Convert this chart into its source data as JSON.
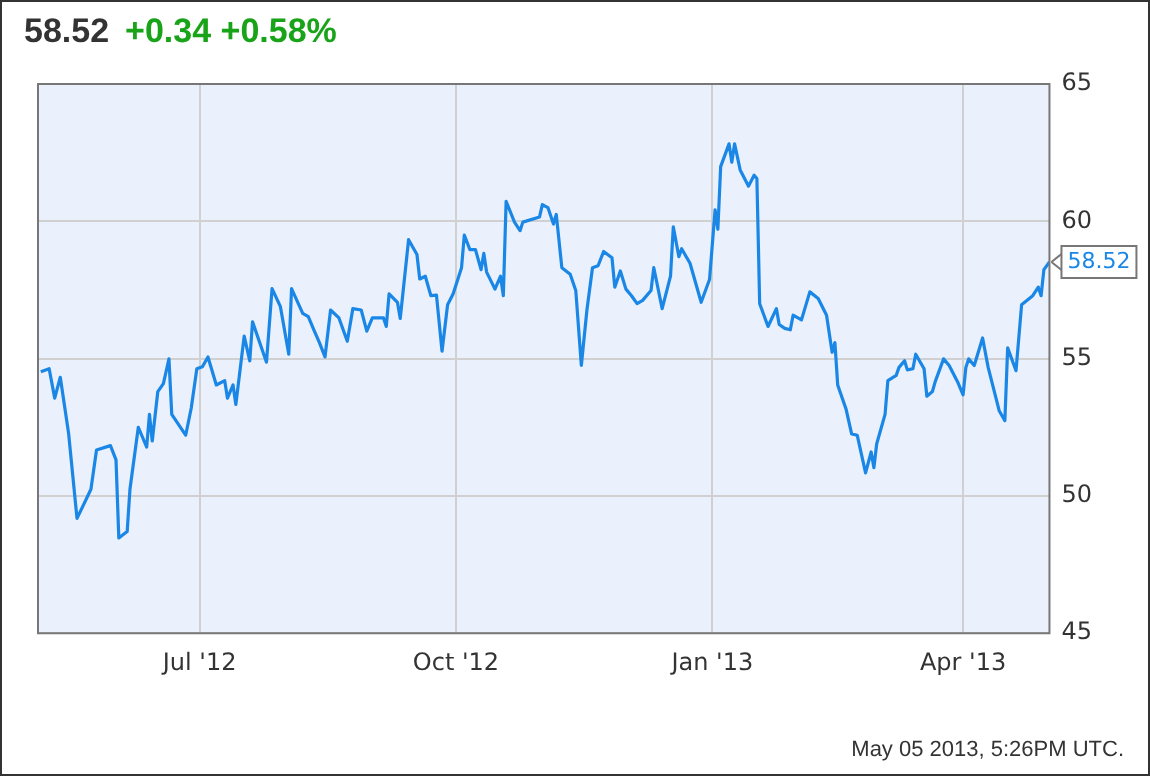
{
  "chart_data": {
    "type": "line",
    "title": "58.52",
    "subtitle": "+0.34  +0.58%",
    "x": [
      "2012-05-05",
      "2012-05-08",
      "2012-05-10",
      "2012-05-12",
      "2012-05-15",
      "2012-05-18",
      "2012-05-23",
      "2012-05-25",
      "2012-05-30",
      "2012-06-01",
      "2012-06-02",
      "2012-06-05",
      "2012-06-06",
      "2012-06-09",
      "2012-06-12",
      "2012-06-13",
      "2012-06-14",
      "2012-06-16",
      "2012-06-18",
      "2012-06-20",
      "2012-06-21",
      "2012-06-26",
      "2012-06-28",
      "2012-06-30",
      "2012-07-02",
      "2012-07-04",
      "2012-07-07",
      "2012-07-10",
      "2012-07-11",
      "2012-07-13",
      "2012-07-14",
      "2012-07-17",
      "2012-07-19",
      "2012-07-20",
      "2012-07-25",
      "2012-07-27",
      "2012-07-30",
      "2012-08-02",
      "2012-08-03",
      "2012-08-07",
      "2012-08-09",
      "2012-08-11",
      "2012-08-13",
      "2012-08-15",
      "2012-08-17",
      "2012-08-20",
      "2012-08-23",
      "2012-08-25",
      "2012-08-28",
      "2012-08-30",
      "2012-09-01",
      "2012-09-05",
      "2012-09-06",
      "2012-09-07",
      "2012-09-10",
      "2012-09-11",
      "2012-09-14",
      "2012-09-17",
      "2012-09-18",
      "2012-09-20",
      "2012-09-22",
      "2012-09-24",
      "2012-09-26",
      "2012-09-28",
      "2012-09-30",
      "2012-10-03",
      "2012-10-04",
      "2012-10-06",
      "2012-10-08",
      "2012-10-10",
      "2012-10-11",
      "2012-10-12",
      "2012-10-15",
      "2012-10-17",
      "2012-10-18",
      "2012-10-19",
      "2012-10-22",
      "2012-10-24",
      "2012-10-25",
      "2012-10-31",
      "2012-11-01",
      "2012-11-03",
      "2012-11-05",
      "2012-11-06",
      "2012-11-08",
      "2012-11-11",
      "2012-11-13",
      "2012-11-15",
      "2012-11-17",
      "2012-11-19",
      "2012-11-21",
      "2012-11-23",
      "2012-11-26",
      "2012-11-27",
      "2012-11-29",
      "2012-12-01",
      "2012-12-03",
      "2012-12-05",
      "2012-12-07",
      "2012-12-10",
      "2012-12-11",
      "2012-12-14",
      "2012-12-17",
      "2012-12-18",
      "2012-12-20",
      "2012-12-21",
      "2012-12-24",
      "2012-12-28",
      "2012-12-31",
      "2013-01-02",
      "2013-01-03",
      "2013-01-04",
      "2013-01-07",
      "2013-01-08",
      "2013-01-09",
      "2013-01-11",
      "2013-01-14",
      "2013-01-16",
      "2013-01-17",
      "2013-01-18",
      "2013-01-21",
      "2013-01-24",
      "2013-01-25",
      "2013-01-27",
      "2013-01-29",
      "2013-01-30",
      "2013-02-02",
      "2013-02-05",
      "2013-02-08",
      "2013-02-11",
      "2013-02-13",
      "2013-02-14",
      "2013-02-15",
      "2013-02-18",
      "2013-02-20",
      "2013-02-22",
      "2013-02-25",
      "2013-02-27",
      "2013-02-28",
      "2013-03-01",
      "2013-03-04",
      "2013-03-05",
      "2013-03-08",
      "2013-03-09",
      "2013-03-11",
      "2013-03-12",
      "2013-03-14",
      "2013-03-15",
      "2013-03-18",
      "2013-03-19",
      "2013-03-21",
      "2013-03-22",
      "2013-03-25",
      "2013-03-27",
      "2013-03-30",
      "2013-04-01",
      "2013-04-02",
      "2013-04-03",
      "2013-04-05",
      "2013-04-08",
      "2013-04-10",
      "2013-04-14",
      "2013-04-16",
      "2013-04-17",
      "2013-04-20",
      "2013-04-22",
      "2013-04-26",
      "2013-04-28",
      "2013-04-29",
      "2013-04-30",
      "2013-05-02"
    ],
    "series": [
      {
        "color": "#1a87e6",
        "values": [
          54.52,
          54.63,
          53.56,
          54.32,
          52.26,
          49.18,
          50.24,
          51.67,
          51.83,
          51.31,
          48.47,
          48.7,
          50.24,
          52.5,
          51.78,
          52.97,
          52.0,
          53.8,
          54.09,
          54.99,
          52.97,
          52.21,
          53.2,
          54.63,
          54.7,
          55.06,
          54.04,
          54.2,
          53.56,
          54.04,
          53.33,
          55.82,
          54.92,
          56.34,
          54.87,
          57.55,
          56.89,
          55.16,
          57.55,
          56.65,
          56.53,
          56.05,
          55.58,
          55.06,
          56.77,
          56.48,
          55.63,
          56.82,
          56.77,
          56.0,
          56.48,
          56.48,
          56.17,
          57.36,
          57.05,
          56.46,
          59.33,
          58.79,
          57.9,
          58.0,
          57.29,
          57.31,
          55.27,
          56.96,
          57.36,
          58.31,
          59.5,
          58.97,
          58.97,
          58.24,
          58.83,
          58.15,
          57.53,
          58.0,
          57.29,
          60.73,
          59.97,
          59.66,
          59.97,
          60.16,
          60.61,
          60.5,
          59.9,
          60.25,
          58.31,
          58.07,
          57.48,
          54.75,
          56.77,
          58.31,
          58.38,
          58.9,
          58.67,
          57.6,
          58.19,
          57.53,
          57.29,
          57.0,
          57.12,
          57.48,
          58.31,
          56.82,
          58.0,
          59.8,
          58.71,
          59.0,
          58.47,
          57.05,
          57.88,
          60.42,
          59.71,
          61.99,
          62.82,
          62.15,
          62.82,
          61.87,
          61.28,
          61.68,
          61.56,
          57.0,
          56.17,
          56.82,
          56.24,
          56.1,
          56.05,
          56.58,
          56.41,
          57.43,
          57.19,
          56.58,
          55.23,
          55.58,
          54.04,
          53.16,
          52.26,
          52.21,
          50.84,
          51.6,
          51.03,
          51.9,
          52.97,
          54.2,
          54.39,
          54.68,
          54.92,
          54.59,
          54.63,
          55.16,
          54.63,
          53.63,
          53.8,
          54.16,
          54.99,
          54.75,
          54.16,
          53.68,
          54.68,
          54.99,
          54.75,
          55.75,
          54.68,
          53.09,
          52.74,
          55.39,
          54.56,
          56.96,
          57.29,
          57.6,
          57.29,
          58.24,
          58.52
        ]
      }
    ],
    "xlim": [
      "2012-05-04",
      "2013-05-02"
    ],
    "xticks": [
      {
        "value": "2012-07-01",
        "label": "Jul '12"
      },
      {
        "value": "2012-10-01",
        "label": "Oct '12"
      },
      {
        "value": "2013-01-01",
        "label": "Jan '13"
      },
      {
        "value": "2013-04-01",
        "label": "Apr '13"
      }
    ],
    "ylim": [
      45,
      65
    ],
    "yticks": [
      45,
      50,
      55,
      60,
      65
    ],
    "grid": true,
    "legend": false,
    "marker": "none",
    "line_style": "solid",
    "annotations": [
      {
        "text": "58.52",
        "x": "2013-05-02",
        "y": 58.52
      },
      "May 05 2013, 5:26PM UTC."
    ]
  }
}
